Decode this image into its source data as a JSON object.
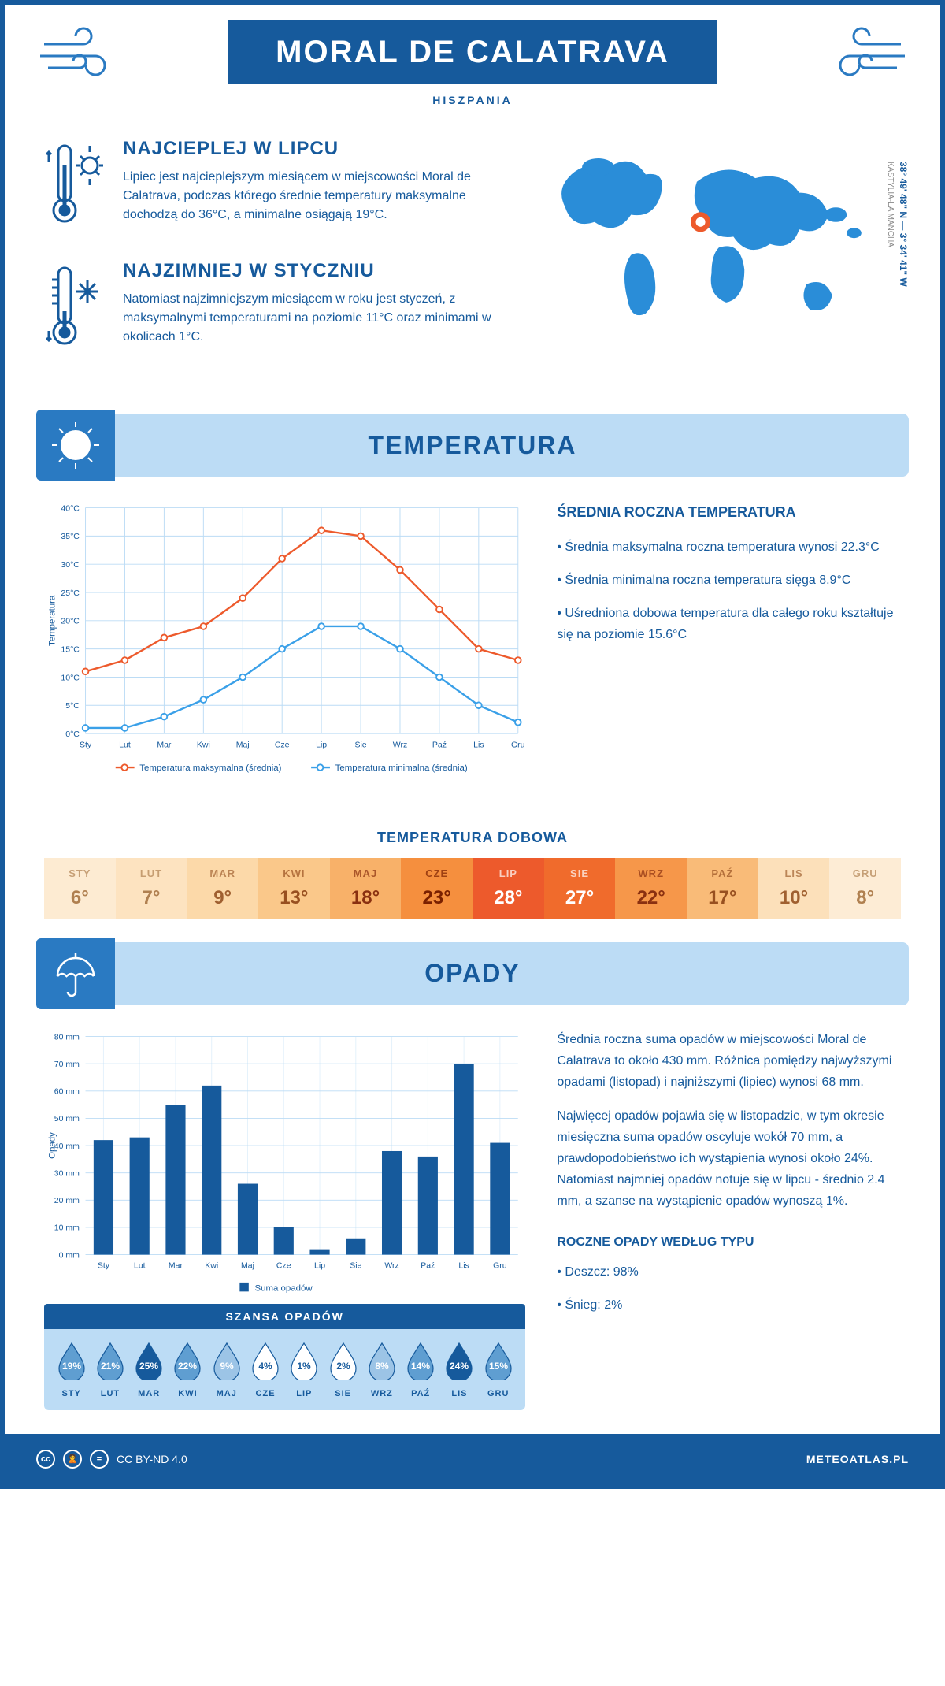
{
  "header": {
    "title": "MORAL DE CALATRAVA",
    "subtitle": "HISZPANIA"
  },
  "intro": {
    "hot": {
      "title": "NAJCIEPLEJ W LIPCU",
      "text": "Lipiec jest najcieplejszym miesiącem w miejscowości Moral de Calatrava, podczas którego średnie temperatury maksymalne dochodzą do 36°C, a minimalne osiągają 19°C."
    },
    "cold": {
      "title": "NAJZIMNIEJ W STYCZNIU",
      "text": "Natomiast najzimniejszym miesiącem w roku jest styczeń, z maksymalnymi temperaturami na poziomie 11°C oraz minimami w okolicach 1°C."
    },
    "coords": "38° 49' 48\" N — 3° 34' 41\" W",
    "region": "KASTYLIA-LA MANCHA",
    "marker_color": "#ed5a2c",
    "map_color": "#2a8dd8"
  },
  "temperature": {
    "section_title": "TEMPERATURA",
    "chart": {
      "type": "line",
      "months": [
        "Sty",
        "Lut",
        "Mar",
        "Kwi",
        "Maj",
        "Cze",
        "Lip",
        "Sie",
        "Wrz",
        "Paź",
        "Lis",
        "Gru"
      ],
      "series": [
        {
          "name": "Temperatura maksymalna (średnia)",
          "color": "#ed5a2c",
          "values": [
            11,
            13,
            17,
            19,
            24,
            31,
            36,
            35,
            29,
            22,
            15,
            13
          ]
        },
        {
          "name": "Temperatura minimalna (średnia)",
          "color": "#3aa0e8",
          "values": [
            1,
            1,
            3,
            6,
            10,
            15,
            19,
            19,
            15,
            10,
            5,
            2
          ]
        }
      ],
      "ylabel": "Temperatura",
      "ylim": [
        0,
        40
      ],
      "ytick_step": 5,
      "grid_color": "#bcdcf5",
      "background_color": "#ffffff",
      "label_fontsize": 11
    },
    "info": {
      "title": "ŚREDNIA ROCZNA TEMPERATURA",
      "bullets": [
        "Średnia maksymalna roczna temperatura wynosi 22.3°C",
        "Średnia minimalna roczna temperatura sięga 8.9°C",
        "Uśredniona dobowa temperatura dla całego roku kształtuje się na poziomie 15.6°C"
      ]
    },
    "daily": {
      "title": "TEMPERATURA DOBOWA",
      "months": [
        "STY",
        "LUT",
        "MAR",
        "KWI",
        "MAJ",
        "CZE",
        "LIP",
        "SIE",
        "WRZ",
        "PAŹ",
        "LIS",
        "GRU"
      ],
      "values": [
        "6°",
        "7°",
        "9°",
        "13°",
        "18°",
        "23°",
        "28°",
        "27°",
        "22°",
        "17°",
        "10°",
        "8°"
      ],
      "colors": [
        "#fdebd2",
        "#fde3c0",
        "#fcd9a9",
        "#fac88a",
        "#f8b169",
        "#f58f3e",
        "#ed5a2c",
        "#f06b2c",
        "#f6974a",
        "#f9bb78",
        "#fce0ba",
        "#fdecd5"
      ],
      "text_colors": [
        "#b08050",
        "#b08050",
        "#a06030",
        "#985020",
        "#8a3010",
        "#7a2000",
        "#ffffff",
        "#ffffff",
        "#8a3010",
        "#985020",
        "#a06030",
        "#b08050"
      ]
    }
  },
  "precip": {
    "section_title": "OPADY",
    "chart": {
      "type": "bar",
      "months": [
        "Sty",
        "Lut",
        "Mar",
        "Kwi",
        "Maj",
        "Cze",
        "Lip",
        "Sie",
        "Wrz",
        "Paź",
        "Lis",
        "Gru"
      ],
      "values": [
        42,
        43,
        55,
        62,
        26,
        10,
        2,
        6,
        38,
        36,
        70,
        41
      ],
      "bar_color": "#165a9c",
      "ylabel": "Opady",
      "ylim": [
        0,
        80
      ],
      "ytick_step": 10,
      "grid_color": "#bcdcf5",
      "legend": "Suma opadów"
    },
    "info": {
      "p1": "Średnia roczna suma opadów w miejscowości Moral de Calatrava to około 430 mm. Różnica pomiędzy najwyższymi opadami (listopad) i najniższymi (lipiec) wynosi 68 mm.",
      "p2": "Najwięcej opadów pojawia się w listopadzie, w tym okresie miesięczna suma opadów oscyluje wokół 70 mm, a prawdopodobieństwo ich wystąpienia wynosi około 24%. Natomiast najmniej opadów notuje się w lipcu - średnio 2.4 mm, a szanse na wystąpienie opadów wynoszą 1%."
    },
    "drops": {
      "title": "SZANSA OPADÓW",
      "months": [
        "STY",
        "LUT",
        "MAR",
        "KWI",
        "MAJ",
        "CZE",
        "LIP",
        "SIE",
        "WRZ",
        "PAŹ",
        "LIS",
        "GRU"
      ],
      "values": [
        19,
        21,
        25,
        22,
        9,
        4,
        1,
        2,
        8,
        14,
        24,
        15
      ],
      "max": 25,
      "fill_color": "#165a9c",
      "empty_color": "#ffffff",
      "partial_color": "#5f9ed1"
    },
    "types": {
      "title": "ROCZNE OPADY WEDŁUG TYPU",
      "bullets": [
        "Deszcz: 98%",
        "Śnieg: 2%"
      ]
    }
  },
  "footer": {
    "license": "CC BY-ND 4.0",
    "site": "METEOATLAS.PL"
  },
  "colors": {
    "primary": "#165a9c",
    "light": "#bcdcf5",
    "mid": "#2a7ac2"
  }
}
